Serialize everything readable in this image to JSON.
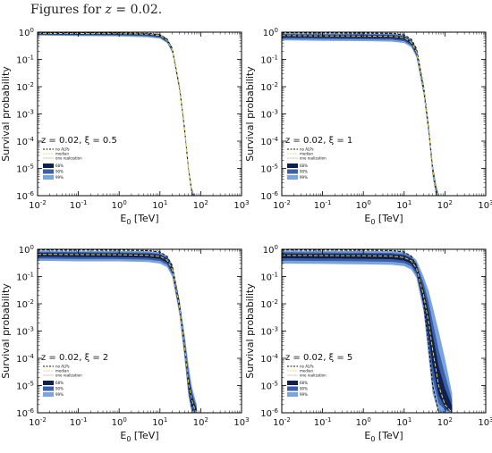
{
  "caption": {
    "prefix": "Figures for ",
    "var": "z",
    "rest": " = 0.02."
  },
  "colors": {
    "band68": "#0f1f4f",
    "band90": "#3b5fa8",
    "band99": "#7aa4de",
    "median": "#e3d04d",
    "no_alps": "#111111",
    "realization": "#aaaaaa"
  },
  "chart_data": [
    {
      "type": "line",
      "xlabel_main": "E",
      "xlabel_sub": "0",
      "xlabel_unit": " [TeV]",
      "ylabel": "Survival probability",
      "xscale": "log",
      "yscale": "log",
      "xlim": [
        0.01,
        1000
      ],
      "ylim": [
        1e-06,
        1
      ],
      "x_ticks": [
        "10^-2",
        "10^-1",
        "10^0",
        "10^1",
        "10^2",
        "10^3"
      ],
      "y_ticks": [
        "10^-6",
        "10^-5",
        "10^-4",
        "10^-3",
        "10^-2",
        "10^-1",
        "10^0"
      ],
      "annotation": "z = 0.02,   ξ = 0.5",
      "legend_lines": [
        "no ALPs",
        "median",
        "one realization"
      ],
      "legend_bands": [
        "68%",
        "90%",
        "99%"
      ],
      "x": [
        0.01,
        0.1,
        1,
        5,
        10,
        15,
        20,
        30,
        40,
        50,
        60,
        70
      ],
      "no_alps": [
        0.95,
        0.94,
        0.93,
        0.9,
        0.8,
        0.55,
        0.25,
        0.01,
        0.0003,
        1e-05,
        1.5e-06,
        1e-06
      ],
      "median": [
        0.9,
        0.89,
        0.88,
        0.85,
        0.75,
        0.5,
        0.23,
        0.009,
        0.0003,
        1e-05,
        1.5e-06,
        1e-06
      ],
      "band_upper": [
        0.98,
        0.97,
        0.96,
        0.93,
        0.84,
        0.6,
        0.28,
        0.012,
        0.0004,
        1.3e-05,
        2e-06,
        1e-06
      ],
      "band_lower": [
        0.75,
        0.72,
        0.7,
        0.65,
        0.58,
        0.4,
        0.18,
        0.007,
        0.0002,
        8e-06,
        1e-06,
        1e-06
      ]
    },
    {
      "type": "line",
      "xlabel_main": "E",
      "xlabel_sub": "0",
      "xlabel_unit": " [TeV]",
      "ylabel": "Survival probability",
      "xscale": "log",
      "yscale": "log",
      "xlim": [
        0.01,
        1000
      ],
      "ylim": [
        1e-06,
        1
      ],
      "x_ticks": [
        "10^-2",
        "10^-1",
        "10^0",
        "10^1",
        "10^2",
        "10^3"
      ],
      "y_ticks": [
        "10^-6",
        "10^-5",
        "10^-4",
        "10^-3",
        "10^-2",
        "10^-1",
        "10^0"
      ],
      "annotation": "z = 0.02,   ξ = 1",
      "legend_lines": [
        "no ALPs",
        "median",
        "one realization"
      ],
      "legend_bands": [
        "68%",
        "90%",
        "99%"
      ],
      "x": [
        0.01,
        0.1,
        1,
        5,
        10,
        15,
        20,
        30,
        40,
        50,
        60,
        70
      ],
      "no_alps": [
        0.95,
        0.94,
        0.93,
        0.9,
        0.8,
        0.55,
        0.25,
        0.01,
        0.0003,
        1e-05,
        1.5e-06,
        1e-06
      ],
      "median": [
        0.75,
        0.73,
        0.72,
        0.7,
        0.62,
        0.42,
        0.19,
        0.008,
        0.00025,
        9e-06,
        1.5e-06,
        1e-06
      ],
      "band_upper": [
        0.92,
        0.9,
        0.9,
        0.88,
        0.8,
        0.55,
        0.26,
        0.012,
        0.0004,
        1.5e-05,
        3e-06,
        1e-06
      ],
      "band_lower": [
        0.5,
        0.48,
        0.47,
        0.45,
        0.4,
        0.28,
        0.12,
        0.005,
        0.00015,
        5e-06,
        1e-06,
        1e-06
      ]
    },
    {
      "type": "line",
      "xlabel_main": "E",
      "xlabel_sub": "0",
      "xlabel_unit": " [TeV]",
      "ylabel": "Survival probability",
      "xscale": "log",
      "yscale": "log",
      "xlim": [
        0.01,
        1000
      ],
      "ylim": [
        1e-06,
        1
      ],
      "x_ticks": [
        "10^-2",
        "10^-1",
        "10^0",
        "10^1",
        "10^2",
        "10^3"
      ],
      "y_ticks": [
        "10^-6",
        "10^-5",
        "10^-4",
        "10^-3",
        "10^-2",
        "10^-1",
        "10^0"
      ],
      "annotation": "z = 0.02,   ξ = 2",
      "legend_lines": [
        "no ALPs",
        "median",
        "one realization"
      ],
      "legend_bands": [
        "68%",
        "90%",
        "99%"
      ],
      "x": [
        0.01,
        0.1,
        1,
        5,
        10,
        15,
        20,
        30,
        40,
        50,
        60,
        70,
        80
      ],
      "no_alps": [
        0.95,
        0.94,
        0.93,
        0.9,
        0.8,
        0.55,
        0.25,
        0.01,
        0.0003,
        1e-05,
        1.5e-06,
        1e-06,
        1e-06
      ],
      "median": [
        0.65,
        0.64,
        0.63,
        0.6,
        0.55,
        0.4,
        0.18,
        0.008,
        0.0003,
        1.2e-05,
        3e-06,
        1.5e-06,
        1e-06
      ],
      "band_upper": [
        0.9,
        0.88,
        0.87,
        0.85,
        0.78,
        0.58,
        0.28,
        0.015,
        0.0008,
        6e-05,
        1e-05,
        4e-06,
        2e-06
      ],
      "band_lower": [
        0.38,
        0.36,
        0.36,
        0.34,
        0.3,
        0.22,
        0.1,
        0.004,
        0.0001,
        4e-06,
        1e-06,
        1e-06,
        1e-06
      ]
    },
    {
      "type": "line",
      "xlabel_main": "E",
      "xlabel_sub": "0",
      "xlabel_unit": " [TeV]",
      "ylabel": "Survival probability",
      "xscale": "log",
      "yscale": "log",
      "xlim": [
        0.01,
        1000
      ],
      "ylim": [
        1e-06,
        1
      ],
      "x_ticks": [
        "10^-2",
        "10^-1",
        "10^0",
        "10^1",
        "10^2",
        "10^3"
      ],
      "y_ticks": [
        "10^-6",
        "10^-5",
        "10^-4",
        "10^-3",
        "10^-2",
        "10^-1",
        "10^0"
      ],
      "annotation": "z = 0.02,   ξ = 5",
      "legend_lines": [
        "no ALPs",
        "median",
        "one realization"
      ],
      "legend_bands": [
        "68%",
        "90%",
        "99%"
      ],
      "x": [
        0.01,
        0.1,
        1,
        5,
        10,
        15,
        20,
        30,
        40,
        50,
        70,
        100,
        150
      ],
      "no_alps": [
        0.95,
        0.94,
        0.93,
        0.9,
        0.8,
        0.55,
        0.25,
        0.01,
        0.0003,
        1e-05,
        1e-06,
        1e-06,
        1e-06
      ],
      "median": [
        0.6,
        0.59,
        0.58,
        0.56,
        0.5,
        0.38,
        0.2,
        0.02,
        0.002,
        0.0002,
        1e-05,
        2e-06,
        1e-06
      ],
      "band_upper": [
        0.9,
        0.88,
        0.87,
        0.85,
        0.8,
        0.6,
        0.4,
        0.1,
        0.03,
        0.008,
        0.001,
        0.0001,
        5e-06
      ],
      "band_lower": [
        0.3,
        0.29,
        0.28,
        0.27,
        0.24,
        0.18,
        0.09,
        0.005,
        0.0001,
        5e-06,
        1e-06,
        1e-06,
        1e-06
      ]
    }
  ]
}
